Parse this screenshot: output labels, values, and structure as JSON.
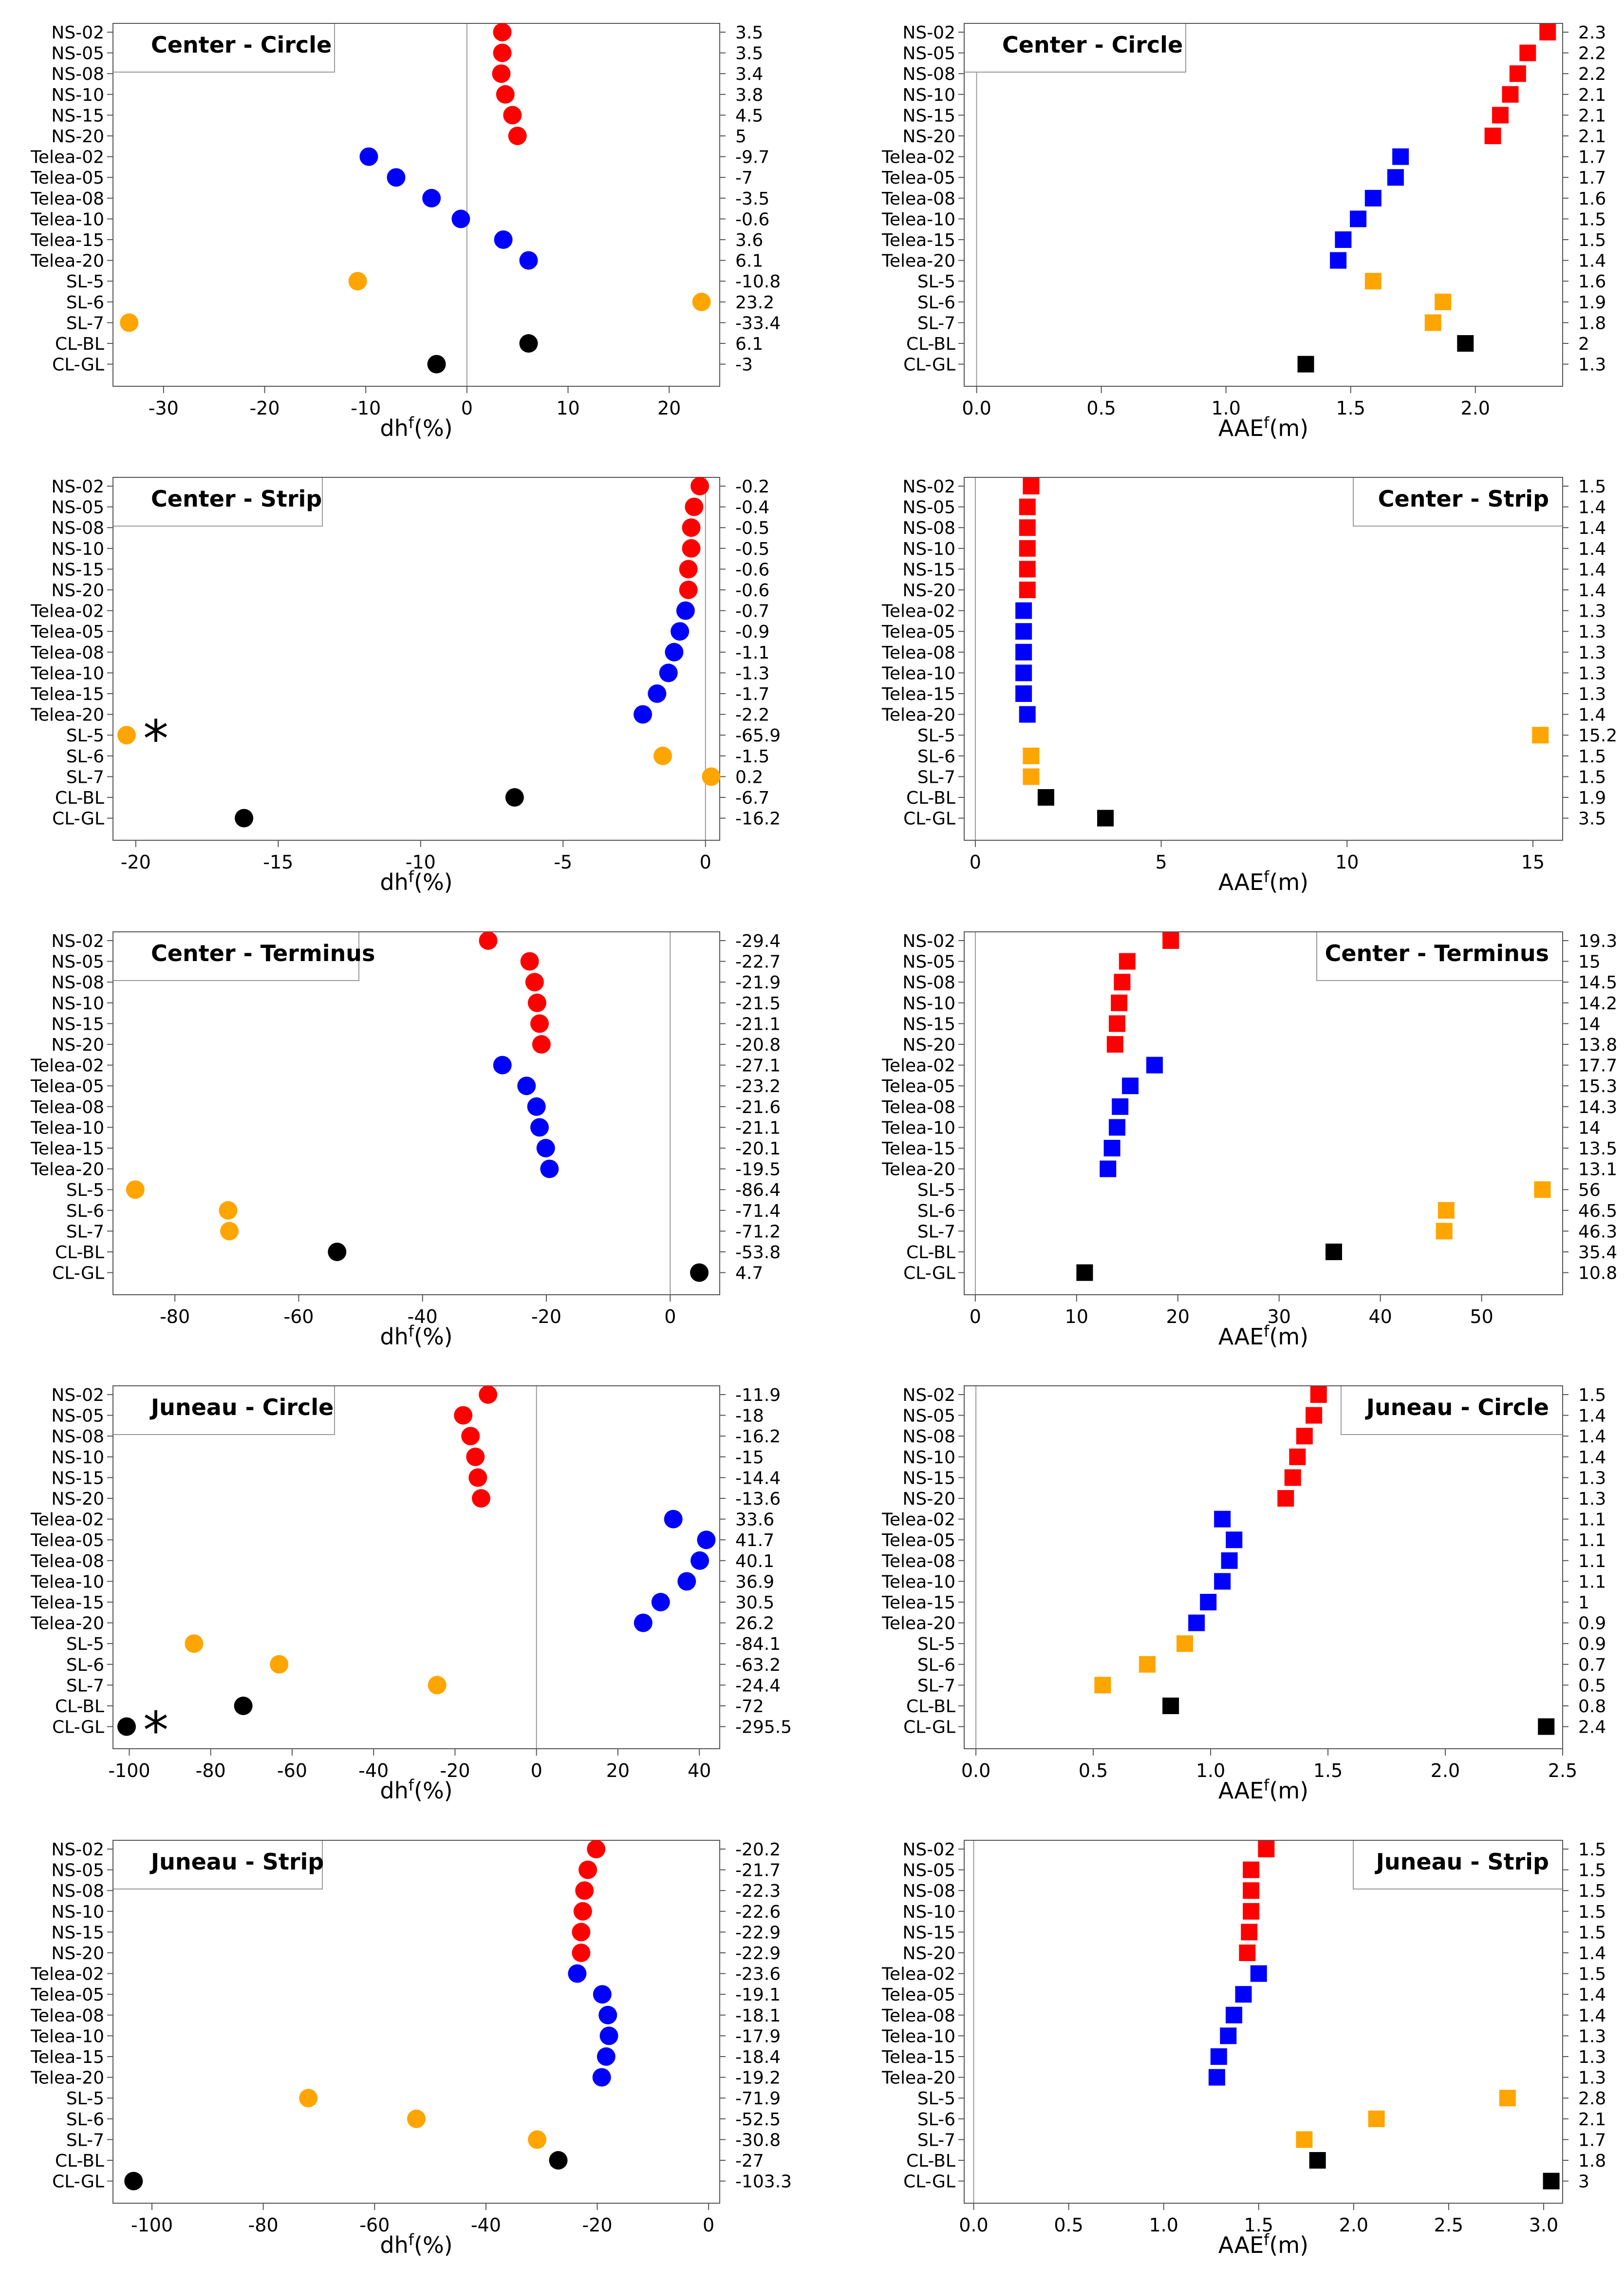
{
  "labels": [
    "NS-02",
    "NS-05",
    "NS-08",
    "NS-10",
    "NS-15",
    "NS-20",
    "Telea-02",
    "Telea-05",
    "Telea-08",
    "Telea-10",
    "Telea-15",
    "Telea-20",
    "SL-5",
    "SL-6",
    "SL-7",
    "CL-BL",
    "CL-GL"
  ],
  "groups": [
    "red",
    "red",
    "red",
    "red",
    "red",
    "red",
    "blue",
    "blue",
    "blue",
    "blue",
    "blue",
    "blue",
    "orange",
    "orange",
    "orange",
    "black",
    "black"
  ],
  "colors": {
    "red": "#ff0000",
    "blue": "#0000ff",
    "orange": "#ffa500",
    "black": "#000000"
  },
  "chart_data": [
    {
      "type": "scatter",
      "marker": "circle",
      "title": "Center - Circle",
      "legend_position": "top-left",
      "xlabel_base": "dh",
      "xlabel_sup": "f",
      "xlabel_unit": "(%)",
      "xlim": [
        -35,
        25
      ],
      "xticks": [
        -30,
        -20,
        -10,
        0,
        10,
        20
      ],
      "xtick_labels": [
        "-30",
        "-20",
        "-10",
        "0",
        "10",
        "20"
      ],
      "values": [
        3.5,
        3.5,
        3.4,
        3.8,
        4.5,
        5,
        -9.7,
        -7,
        -3.5,
        -0.6,
        3.6,
        6.1,
        -10.8,
        23.2,
        -33.4,
        6.1,
        -3
      ],
      "value_labels": [
        "3.5",
        "3.5",
        "3.4",
        "3.8",
        "4.5",
        "5",
        "-9.7",
        "-7",
        "-3.5",
        "-0.6",
        "3.6",
        "6.1",
        "-10.8",
        "23.2",
        "-33.4",
        "6.1",
        "-3"
      ],
      "zero_line": true
    },
    {
      "type": "scatter",
      "marker": "square",
      "title": "Center - Circle",
      "legend_position": "top-left",
      "xlabel_base": "AAE",
      "xlabel_sup": "f",
      "xlabel_unit": "(m)",
      "xlim": [
        -0.05,
        2.35
      ],
      "xticks": [
        0,
        0.5,
        1,
        1.5,
        2
      ],
      "xtick_labels": [
        "0.0",
        "0.5",
        "1.0",
        "1.5",
        "2.0"
      ],
      "values": [
        2.3,
        2.2,
        2.2,
        2.1,
        2.1,
        2.1,
        1.7,
        1.7,
        1.6,
        1.5,
        1.5,
        1.4,
        1.6,
        1.9,
        1.8,
        2,
        1.3
      ],
      "value_labels": [
        "2.3",
        "2.2",
        "2.2",
        "2.1",
        "2.1",
        "2.1",
        "1.7",
        "1.7",
        "1.6",
        "1.5",
        "1.5",
        "1.4",
        "1.6",
        "1.9",
        "1.8",
        "2",
        "1.3"
      ],
      "plot_values": [
        2.29,
        2.21,
        2.17,
        2.14,
        2.1,
        2.07,
        1.7,
        1.68,
        1.59,
        1.53,
        1.47,
        1.45,
        1.59,
        1.87,
        1.83,
        1.96,
        1.32
      ],
      "zero_line": true
    },
    {
      "type": "scatter",
      "marker": "circle",
      "title": "Center - Strip",
      "legend_position": "top-left",
      "xlabel_base": "dh",
      "xlabel_sup": "f",
      "xlabel_unit": "(%)",
      "xlim": [
        -20.8,
        0.5
      ],
      "xticks": [
        -20,
        -15,
        -10,
        -5,
        0
      ],
      "xtick_labels": [
        "-20",
        "-15",
        "-10",
        "-5",
        "0"
      ],
      "values": [
        -0.2,
        -0.4,
        -0.5,
        -0.5,
        -0.6,
        -0.6,
        -0.7,
        -0.9,
        -1.1,
        -1.3,
        -1.7,
        -2.2,
        -65.9,
        -1.5,
        0.2,
        -6.7,
        -16.2
      ],
      "value_labels": [
        "-0.2",
        "-0.4",
        "-0.5",
        "-0.5",
        "-0.6",
        "-0.6",
        "-0.7",
        "-0.9",
        "-1.1",
        "-1.3",
        "-1.7",
        "-2.2",
        "-65.9",
        "-1.5",
        "0.2",
        "-6.7",
        "-16.2"
      ],
      "clip_markers": [
        {
          "row": 12,
          "symbol": "*"
        }
      ],
      "zero_line": true
    },
    {
      "type": "scatter",
      "marker": "square",
      "title": "Center - Strip",
      "legend_position": "top-right",
      "xlabel_base": "AAE",
      "xlabel_sup": "f",
      "xlabel_unit": "(m)",
      "xlim": [
        -0.3,
        15.8
      ],
      "xticks": [
        0,
        5,
        10,
        15
      ],
      "xtick_labels": [
        "0",
        "5",
        "10",
        "15"
      ],
      "values": [
        1.5,
        1.4,
        1.4,
        1.4,
        1.4,
        1.4,
        1.3,
        1.3,
        1.3,
        1.3,
        1.3,
        1.4,
        15.2,
        1.5,
        1.5,
        1.9,
        3.5
      ],
      "value_labels": [
        "1.5",
        "1.4",
        "1.4",
        "1.4",
        "1.4",
        "1.4",
        "1.3",
        "1.3",
        "1.3",
        "1.3",
        "1.3",
        "1.4",
        "15.2",
        "1.5",
        "1.5",
        "1.9",
        "3.5"
      ],
      "zero_line": true
    },
    {
      "type": "scatter",
      "marker": "circle",
      "title": "Center - Terminus",
      "legend_position": "top-left",
      "xlabel_base": "dh",
      "xlabel_sup": "f",
      "xlabel_unit": "(%)",
      "xlim": [
        -90,
        8
      ],
      "xticks": [
        -80,
        -60,
        -40,
        -20,
        0
      ],
      "xtick_labels": [
        "-80",
        "-60",
        "-40",
        "-20",
        "0"
      ],
      "values": [
        -29.4,
        -22.7,
        -21.9,
        -21.5,
        -21.1,
        -20.8,
        -27.1,
        -23.2,
        -21.6,
        -21.1,
        -20.1,
        -19.5,
        -86.4,
        -71.4,
        -71.2,
        -53.8,
        4.7
      ],
      "value_labels": [
        "-29.4",
        "-22.7",
        "-21.9",
        "-21.5",
        "-21.1",
        "-20.8",
        "-27.1",
        "-23.2",
        "-21.6",
        "-21.1",
        "-20.1",
        "-19.5",
        "-86.4",
        "-71.4",
        "-71.2",
        "-53.8",
        "4.7"
      ],
      "zero_line": true
    },
    {
      "type": "scatter",
      "marker": "square",
      "title": "Center - Terminus",
      "legend_position": "top-right",
      "xlabel_base": "AAE",
      "xlabel_sup": "f",
      "xlabel_unit": "(m)",
      "xlim": [
        -1.1,
        58
      ],
      "xticks": [
        0,
        10,
        20,
        30,
        40,
        50
      ],
      "xtick_labels": [
        "0",
        "10",
        "20",
        "30",
        "40",
        "50"
      ],
      "values": [
        19.3,
        15,
        14.5,
        14.2,
        14,
        13.8,
        17.7,
        15.3,
        14.3,
        14,
        13.5,
        13.1,
        56,
        46.5,
        46.3,
        35.4,
        10.8
      ],
      "value_labels": [
        "19.3",
        "15",
        "14.5",
        "14.2",
        "14",
        "13.8",
        "17.7",
        "15.3",
        "14.3",
        "14",
        "13.5",
        "13.1",
        "56",
        "46.5",
        "46.3",
        "35.4",
        "10.8"
      ],
      "zero_line": true
    },
    {
      "type": "scatter",
      "marker": "circle",
      "title": "Juneau - Circle",
      "legend_position": "top-left",
      "xlabel_base": "dh",
      "xlabel_sup": "f",
      "xlabel_unit": "(%)",
      "xlim": [
        -104,
        45
      ],
      "xticks": [
        -100,
        -80,
        -60,
        -40,
        -20,
        0,
        20,
        40
      ],
      "xtick_labels": [
        "-100",
        "-80",
        "-60",
        "-40",
        "-20",
        "0",
        "20",
        "40"
      ],
      "values": [
        -11.9,
        -18,
        -16.2,
        -15,
        -14.4,
        -13.6,
        33.6,
        41.7,
        40.1,
        36.9,
        30.5,
        26.2,
        -84.1,
        -63.2,
        -24.4,
        -72,
        -295.5
      ],
      "value_labels": [
        "-11.9",
        "-18",
        "-16.2",
        "-15",
        "-14.4",
        "-13.6",
        "33.6",
        "41.7",
        "40.1",
        "36.9",
        "30.5",
        "26.2",
        "-84.1",
        "-63.2",
        "-24.4",
        "-72",
        "-295.5"
      ],
      "clip_markers": [
        {
          "row": 16,
          "symbol": "*"
        }
      ],
      "zero_line": true
    },
    {
      "type": "scatter",
      "marker": "square",
      "title": "Juneau - Circle",
      "legend_position": "top-right",
      "xlabel_base": "AAE",
      "xlabel_sup": "f",
      "xlabel_unit": "(m)",
      "xlim": [
        -0.05,
        2.5
      ],
      "xticks": [
        0,
        0.5,
        1,
        1.5,
        2,
        2.5
      ],
      "xtick_labels": [
        "0.0",
        "0.5",
        "1.0",
        "1.5",
        "2.0",
        "2.5"
      ],
      "values": [
        1.5,
        1.4,
        1.4,
        1.4,
        1.3,
        1.3,
        1.1,
        1.1,
        1.1,
        1.1,
        1,
        0.9,
        0.9,
        0.7,
        0.5,
        0.8,
        2.4
      ],
      "value_labels": [
        "1.5",
        "1.4",
        "1.4",
        "1.4",
        "1.3",
        "1.3",
        "1.1",
        "1.1",
        "1.1",
        "1.1",
        "1",
        "0.9",
        "0.9",
        "0.7",
        "0.5",
        "0.8",
        "2.4"
      ],
      "plot_values": [
        1.46,
        1.44,
        1.4,
        1.37,
        1.35,
        1.32,
        1.05,
        1.1,
        1.08,
        1.05,
        0.99,
        0.94,
        0.89,
        0.73,
        0.54,
        0.83,
        2.43
      ],
      "zero_line": true
    },
    {
      "type": "scatter",
      "marker": "circle",
      "title": "Juneau - Strip",
      "legend_position": "top-left",
      "xlabel_base": "dh",
      "xlabel_sup": "f",
      "xlabel_unit": "(%)",
      "xlim": [
        -107,
        2
      ],
      "xticks": [
        -100,
        -80,
        -60,
        -40,
        -20,
        0
      ],
      "xtick_labels": [
        "-100",
        "-80",
        "-60",
        "-40",
        "-20",
        "0"
      ],
      "values": [
        -20.2,
        -21.7,
        -22.3,
        -22.6,
        -22.9,
        -22.9,
        -23.6,
        -19.1,
        -18.1,
        -17.9,
        -18.4,
        -19.2,
        -71.9,
        -52.5,
        -30.8,
        -27,
        -103.3
      ],
      "value_labels": [
        "-20.2",
        "-21.7",
        "-22.3",
        "-22.6",
        "-22.9",
        "-22.9",
        "-23.6",
        "-19.1",
        "-18.1",
        "-17.9",
        "-18.4",
        "-19.2",
        "-71.9",
        "-52.5",
        "-30.8",
        "-27",
        "-103.3"
      ],
      "zero_line": false
    },
    {
      "type": "scatter",
      "marker": "square",
      "title": "Juneau - Strip",
      "legend_position": "top-right",
      "xlabel_base": "AAE",
      "xlabel_sup": "f",
      "xlabel_unit": "(m)",
      "xlim": [
        -0.05,
        3.1
      ],
      "xticks": [
        0,
        0.5,
        1,
        1.5,
        2,
        2.5,
        3
      ],
      "xtick_labels": [
        "0.0",
        "0.5",
        "1.0",
        "1.5",
        "2.0",
        "2.5",
        "3.0"
      ],
      "values": [
        1.5,
        1.5,
        1.5,
        1.5,
        1.5,
        1.4,
        1.5,
        1.4,
        1.4,
        1.3,
        1.3,
        1.3,
        2.8,
        2.1,
        1.7,
        1.8,
        3
      ],
      "value_labels": [
        "1.5",
        "1.5",
        "1.5",
        "1.5",
        "1.5",
        "1.4",
        "1.5",
        "1.4",
        "1.4",
        "1.3",
        "1.3",
        "1.3",
        "2.8",
        "2.1",
        "1.7",
        "1.8",
        "3"
      ],
      "plot_values": [
        1.54,
        1.46,
        1.46,
        1.46,
        1.45,
        1.44,
        1.5,
        1.42,
        1.37,
        1.34,
        1.29,
        1.28,
        2.81,
        2.12,
        1.74,
        1.81,
        3.04
      ],
      "zero_line": true
    }
  ]
}
